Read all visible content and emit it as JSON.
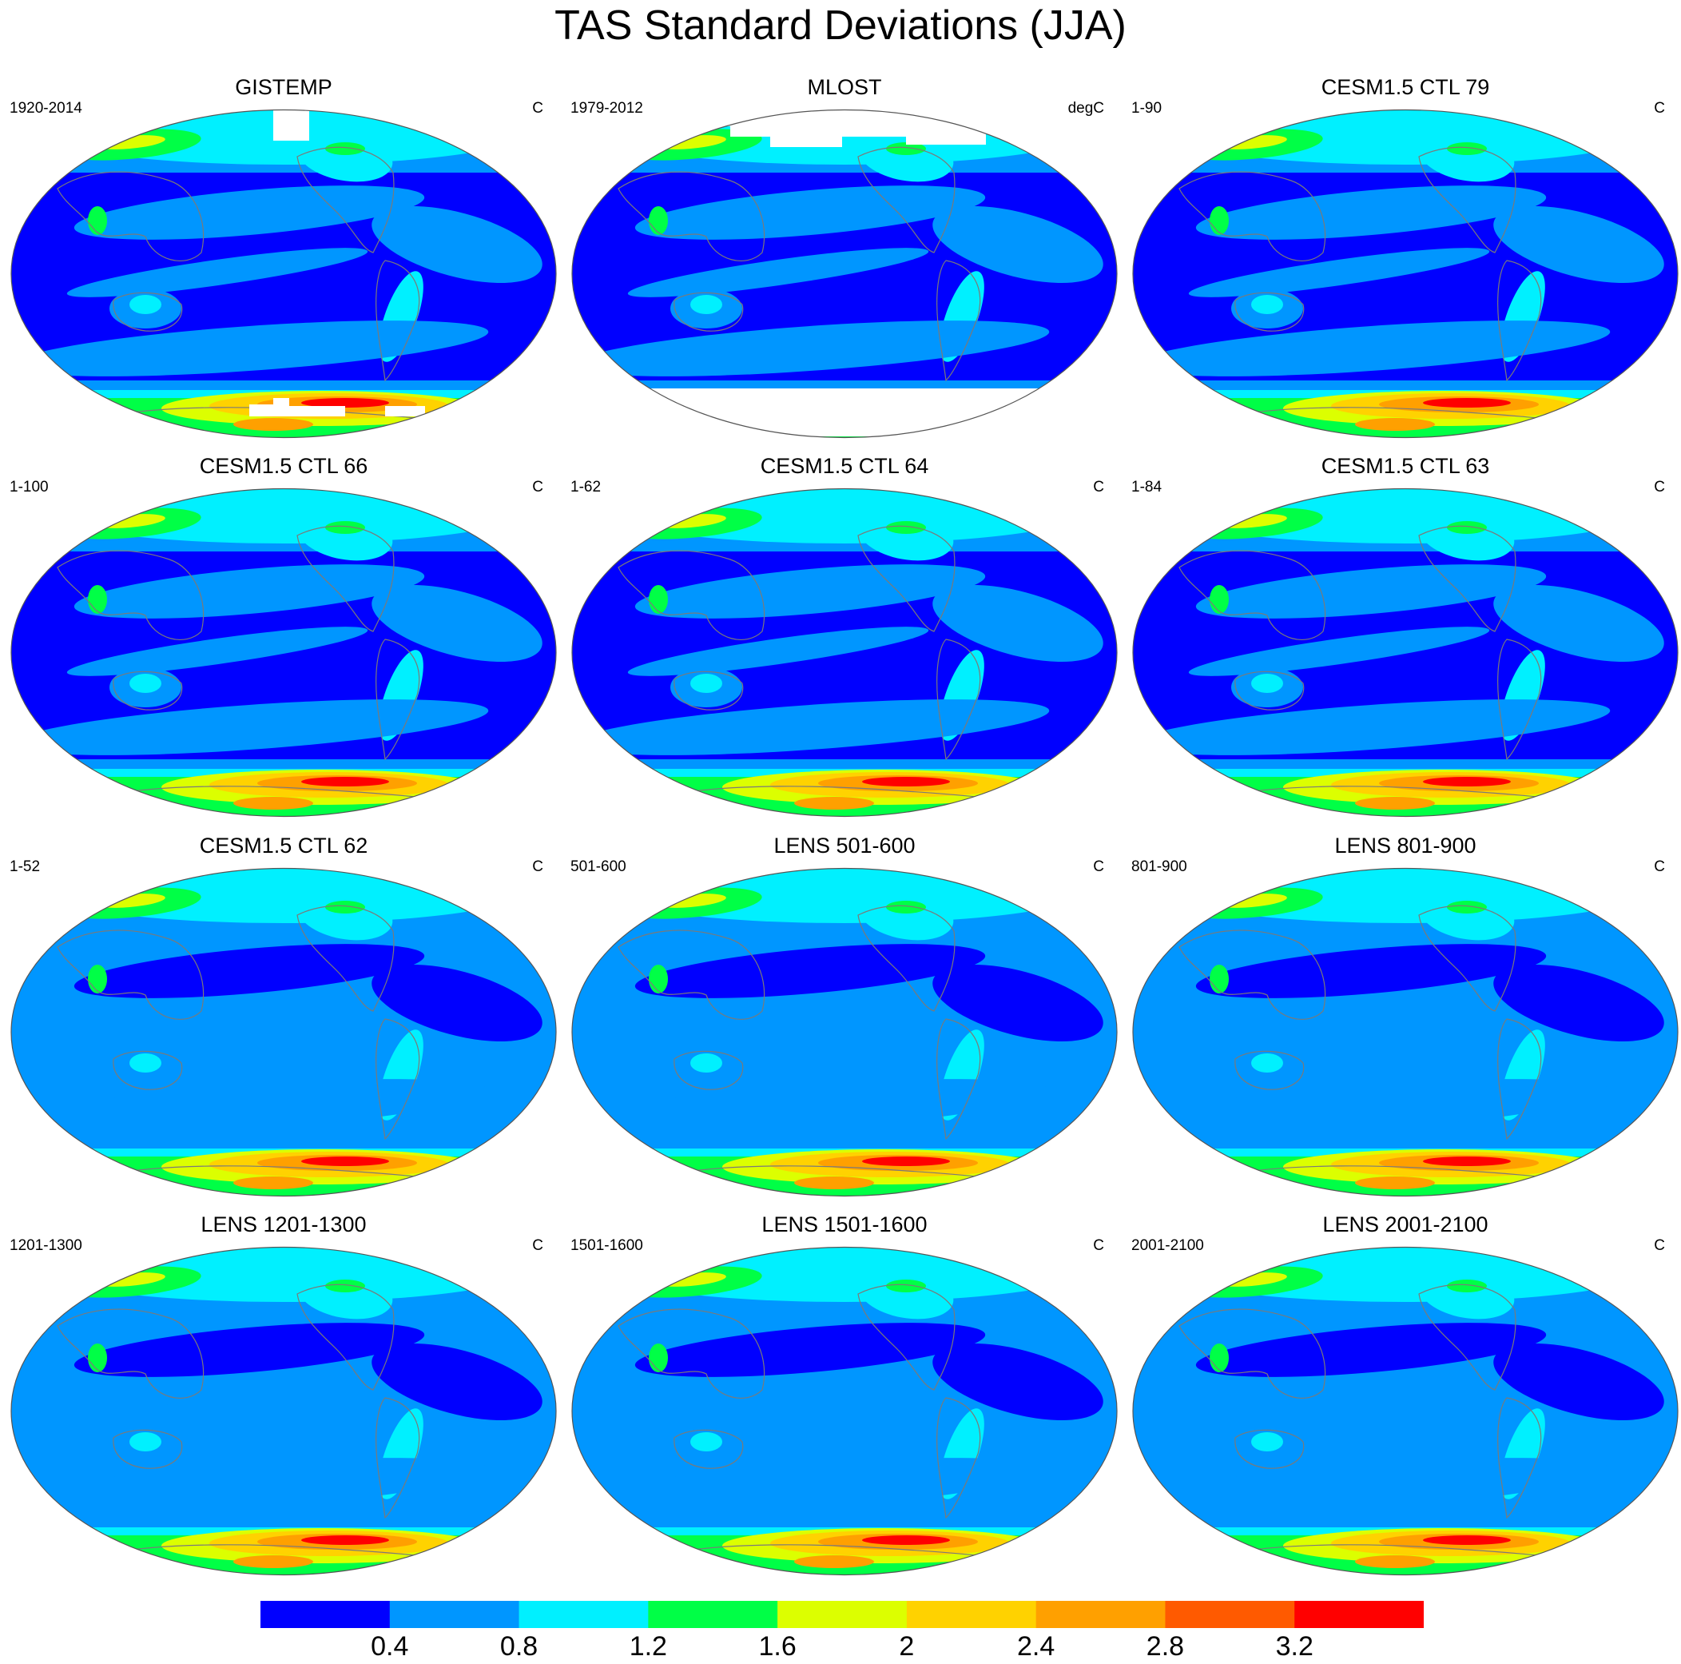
{
  "title": "TAS Standard Deviations (JJA)",
  "palette": [
    "#0000ff",
    "#0096ff",
    "#00f0ff",
    "#00ff46",
    "#dcff00",
    "#ffd200",
    "#ffa000",
    "#ff5a00",
    "#ff0000"
  ],
  "colorbar": {
    "levels": [
      "0.4",
      "0.8",
      "1.2",
      "1.6",
      "2",
      "2.4",
      "2.8",
      "3.2"
    ]
  },
  "panels": [
    {
      "title": "GISTEMP",
      "period": "1920-2014",
      "units": "C",
      "missing_south": true,
      "missing_north": false,
      "base_level": 0
    },
    {
      "title": "MLOST",
      "period": "1979-2012",
      "units": "degC",
      "missing_south": true,
      "missing_north": true,
      "base_level": 0
    },
    {
      "title": "CESM1.5 CTL 79",
      "period": "1-90",
      "units": "C",
      "missing_south": false,
      "missing_north": false,
      "base_level": 0
    },
    {
      "title": "CESM1.5 CTL 66",
      "period": "1-100",
      "units": "C",
      "missing_south": false,
      "missing_north": false,
      "base_level": 0
    },
    {
      "title": "CESM1.5 CTL 64",
      "period": "1-62",
      "units": "C",
      "missing_south": false,
      "missing_north": false,
      "base_level": 0
    },
    {
      "title": "CESM1.5 CTL 63",
      "period": "1-84",
      "units": "C",
      "missing_south": false,
      "missing_north": false,
      "base_level": 0
    },
    {
      "title": "CESM1.5 CTL 62",
      "period": "1-52",
      "units": "C",
      "missing_south": false,
      "missing_north": false,
      "base_level": 1
    },
    {
      "title": "LENS 501-600",
      "period": "501-600",
      "units": "C",
      "missing_south": false,
      "missing_north": false,
      "base_level": 1
    },
    {
      "title": "LENS 801-900",
      "period": "801-900",
      "units": "C",
      "missing_south": false,
      "missing_north": false,
      "base_level": 1
    },
    {
      "title": "LENS 1201-1300",
      "period": "1201-1300",
      "units": "C",
      "missing_south": false,
      "missing_north": false,
      "base_level": 1
    },
    {
      "title": "LENS 1501-1600",
      "period": "1501-1600",
      "units": "C",
      "missing_south": false,
      "missing_north": false,
      "base_level": 1
    },
    {
      "title": "LENS 2001-2100",
      "period": "2001-2100",
      "units": "C",
      "missing_south": false,
      "missing_north": false,
      "base_level": 1
    }
  ]
}
